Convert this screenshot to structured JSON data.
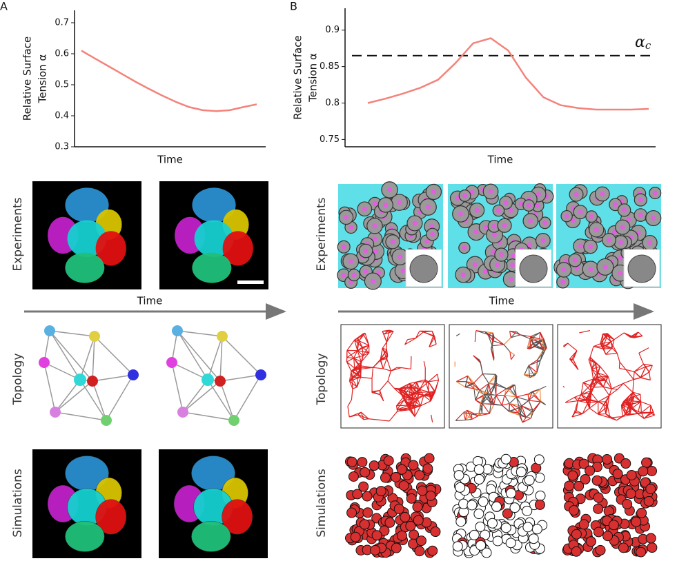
{
  "panels": [
    "A",
    "B"
  ],
  "chart_data": [
    {
      "type": "line",
      "ylabel": [
        "Relative Surface",
        "Tension α"
      ],
      "xlabel": "Time",
      "values": [
        0.61,
        0.585,
        0.56,
        0.535,
        0.51,
        0.487,
        0.465,
        0.445,
        0.428,
        0.418,
        0.415,
        0.418,
        0.428,
        0.437
      ],
      "color": "#f4827a",
      "ylim": [
        0.3,
        0.74
      ],
      "yticks": [
        0.3,
        0.4,
        0.5,
        0.6,
        0.7
      ]
    },
    {
      "type": "line",
      "ylabel": [
        "Relative Surface",
        "Tension α"
      ],
      "xlabel": "Time",
      "values": [
        0.8,
        0.806,
        0.813,
        0.821,
        0.832,
        0.855,
        0.882,
        0.889,
        0.872,
        0.835,
        0.808,
        0.797,
        0.793,
        0.791,
        0.791,
        0.791,
        0.792
      ],
      "color": "#f4827a",
      "ylim": [
        0.74,
        0.93
      ],
      "yticks": [
        0.75,
        0.8,
        0.85,
        0.9
      ],
      "threshold": 0.865,
      "threshold_label": "α",
      "threshold_subscript": "c"
    }
  ],
  "rows": {
    "experiments": "Experiments",
    "topology": "Topology",
    "simulations": "Simulations",
    "time": "Time"
  }
}
